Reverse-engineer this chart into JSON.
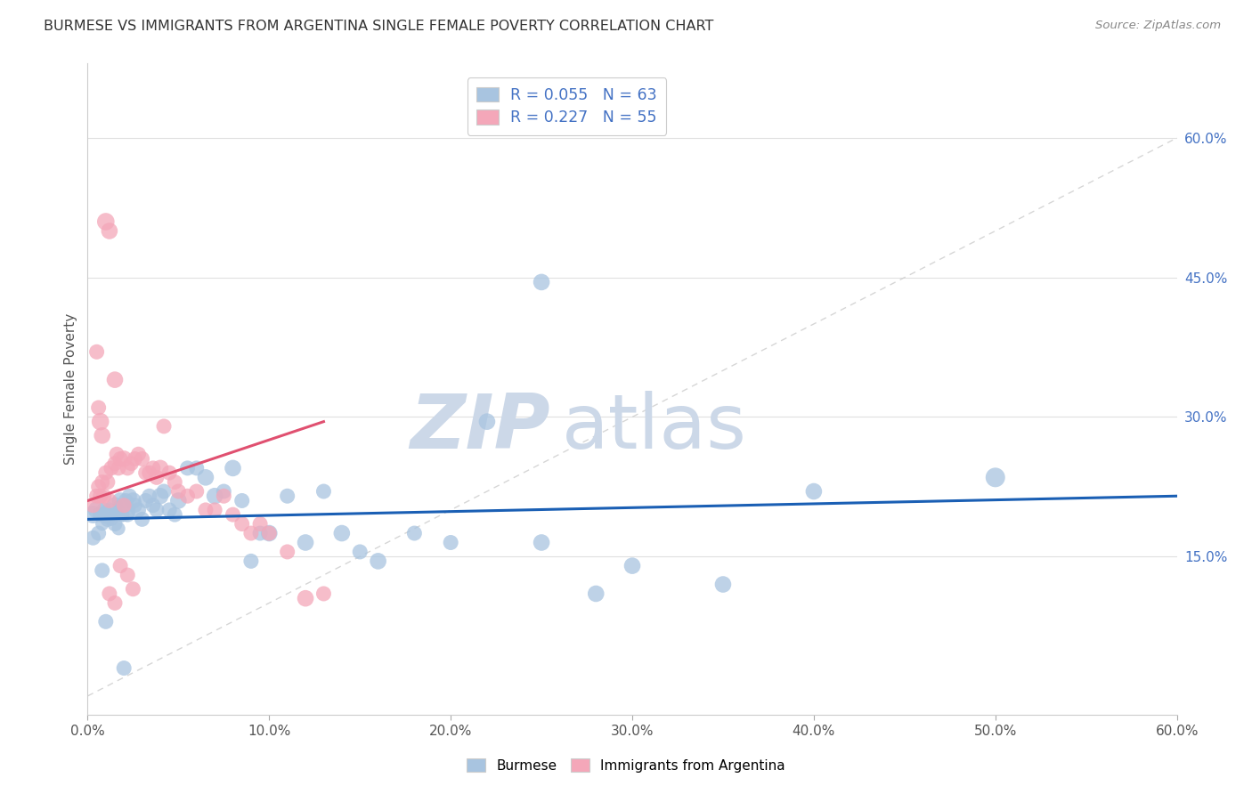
{
  "title": "BURMESE VS IMMIGRANTS FROM ARGENTINA SINGLE FEMALE POVERTY CORRELATION CHART",
  "source": "Source: ZipAtlas.com",
  "ylabel": "Single Female Poverty",
  "xlim": [
    0.0,
    0.6
  ],
  "ylim": [
    -0.02,
    0.68
  ],
  "yticks_right": [
    0.15,
    0.3,
    0.45,
    0.6
  ],
  "ytick_labels_right": [
    "15.0%",
    "30.0%",
    "45.0%",
    "60.0%"
  ],
  "xticks": [
    0.0,
    0.1,
    0.2,
    0.3,
    0.4,
    0.5,
    0.6
  ],
  "xtick_labels": [
    "0.0%",
    "10.0%",
    "20.0%",
    "30.0%",
    "40.0%",
    "50.0%",
    "60.0%"
  ],
  "burmese_color": "#a8c4e0",
  "argentina_color": "#f4a7b9",
  "trend_blue": "#1a5fb4",
  "trend_pink": "#e05070",
  "diagonal_color": "#cccccc",
  "watermark_color": "#ccd8e8",
  "background_color": "#ffffff",
  "grid_color": "#e0e0e0",
  "burmese_x": [
    0.003,
    0.005,
    0.007,
    0.008,
    0.009,
    0.01,
    0.011,
    0.012,
    0.013,
    0.015,
    0.015,
    0.016,
    0.017,
    0.018,
    0.019,
    0.02,
    0.021,
    0.022,
    0.023,
    0.025,
    0.026,
    0.028,
    0.03,
    0.032,
    0.034,
    0.036,
    0.038,
    0.04,
    0.042,
    0.045,
    0.048,
    0.05,
    0.055,
    0.06,
    0.065,
    0.07,
    0.075,
    0.08,
    0.085,
    0.09,
    0.095,
    0.1,
    0.11,
    0.12,
    0.13,
    0.14,
    0.15,
    0.16,
    0.18,
    0.2,
    0.22,
    0.25,
    0.28,
    0.3,
    0.35,
    0.4,
    0.25,
    0.5,
    0.003,
    0.006,
    0.008,
    0.01,
    0.02
  ],
  "burmese_y": [
    0.195,
    0.2,
    0.195,
    0.185,
    0.2,
    0.195,
    0.19,
    0.2,
    0.19,
    0.205,
    0.185,
    0.195,
    0.18,
    0.21,
    0.195,
    0.2,
    0.21,
    0.195,
    0.215,
    0.21,
    0.205,
    0.2,
    0.19,
    0.21,
    0.215,
    0.205,
    0.2,
    0.215,
    0.22,
    0.2,
    0.195,
    0.21,
    0.245,
    0.245,
    0.235,
    0.215,
    0.22,
    0.245,
    0.21,
    0.145,
    0.175,
    0.175,
    0.215,
    0.165,
    0.22,
    0.175,
    0.155,
    0.145,
    0.175,
    0.165,
    0.295,
    0.165,
    0.11,
    0.14,
    0.12,
    0.22,
    0.445,
    0.235,
    0.17,
    0.175,
    0.135,
    0.08,
    0.03
  ],
  "burmese_size": [
    200,
    200,
    150,
    120,
    150,
    200,
    150,
    150,
    120,
    180,
    150,
    150,
    120,
    180,
    150,
    350,
    150,
    150,
    150,
    180,
    150,
    150,
    150,
    150,
    150,
    150,
    150,
    180,
    150,
    150,
    150,
    180,
    150,
    150,
    180,
    180,
    150,
    180,
    150,
    150,
    150,
    180,
    150,
    180,
    150,
    180,
    150,
    180,
    150,
    150,
    180,
    180,
    180,
    180,
    180,
    180,
    180,
    250,
    150,
    150,
    150,
    150,
    150
  ],
  "argentina_x": [
    0.003,
    0.005,
    0.006,
    0.007,
    0.008,
    0.009,
    0.01,
    0.011,
    0.012,
    0.013,
    0.015,
    0.016,
    0.017,
    0.018,
    0.02,
    0.022,
    0.024,
    0.026,
    0.028,
    0.03,
    0.032,
    0.034,
    0.036,
    0.038,
    0.04,
    0.042,
    0.045,
    0.048,
    0.05,
    0.055,
    0.06,
    0.065,
    0.07,
    0.075,
    0.08,
    0.085,
    0.09,
    0.095,
    0.1,
    0.11,
    0.12,
    0.13,
    0.005,
    0.006,
    0.007,
    0.008,
    0.01,
    0.012,
    0.015,
    0.018,
    0.02,
    0.022,
    0.025,
    0.012,
    0.015
  ],
  "argentina_y": [
    0.205,
    0.215,
    0.225,
    0.215,
    0.23,
    0.215,
    0.24,
    0.23,
    0.21,
    0.245,
    0.25,
    0.26,
    0.245,
    0.255,
    0.255,
    0.245,
    0.25,
    0.255,
    0.26,
    0.255,
    0.24,
    0.24,
    0.245,
    0.235,
    0.245,
    0.29,
    0.24,
    0.23,
    0.22,
    0.215,
    0.22,
    0.2,
    0.2,
    0.215,
    0.195,
    0.185,
    0.175,
    0.185,
    0.175,
    0.155,
    0.105,
    0.11,
    0.37,
    0.31,
    0.295,
    0.28,
    0.51,
    0.5,
    0.34,
    0.14,
    0.205,
    0.13,
    0.115,
    0.11,
    0.1
  ],
  "argentina_size": [
    150,
    150,
    150,
    150,
    150,
    150,
    150,
    150,
    150,
    150,
    150,
    150,
    150,
    150,
    180,
    150,
    150,
    150,
    150,
    150,
    150,
    150,
    150,
    150,
    180,
    150,
    150,
    150,
    150,
    150,
    150,
    150,
    150,
    150,
    150,
    150,
    150,
    150,
    150,
    150,
    180,
    150,
    150,
    150,
    200,
    180,
    200,
    180,
    180,
    150,
    150,
    150,
    150,
    150,
    150
  ],
  "blue_trend_x": [
    0.0,
    0.6
  ],
  "blue_trend_y": [
    0.19,
    0.215
  ],
  "pink_trend_x": [
    0.0,
    0.13
  ],
  "pink_trend_y": [
    0.21,
    0.295
  ]
}
